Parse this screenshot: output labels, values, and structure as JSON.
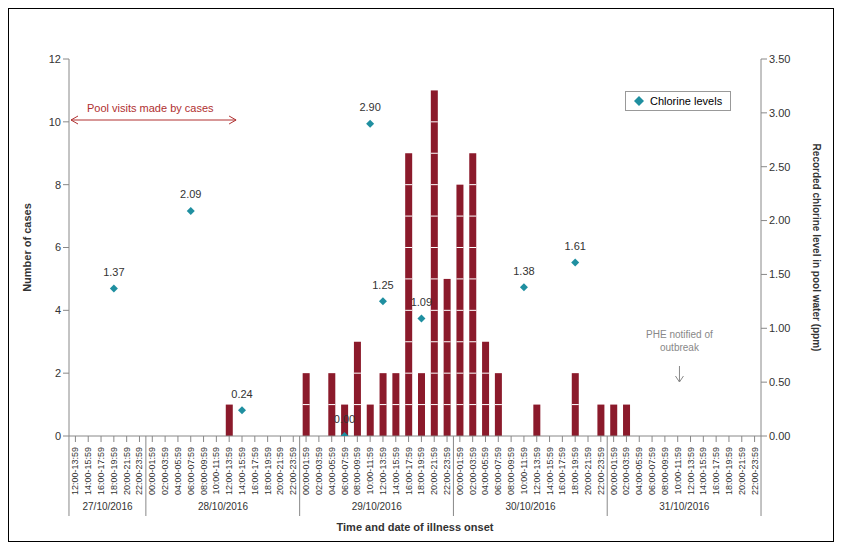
{
  "chart_data": {
    "type": "bar",
    "x_label": "Time and date of illness onset",
    "y_label": "Number of cases",
    "y2_label": "Recorded chlorine level in pool water (ppm)",
    "categories": [
      "12:00-13:59",
      "14:00-15:59",
      "16:00-17:59",
      "18:00-19:59",
      "20:00-21:59",
      "22:00-23:59",
      "00:00-01:59",
      "02:00-03:59",
      "04:00-05:59",
      "06:00-07:59",
      "08:00-09:59",
      "10:00-11:59",
      "12:00-13:59",
      "14:00-15:59",
      "16:00-17:59",
      "18:00-19:59",
      "20:00-21:59",
      "22:00-23:59",
      "00:00-01:59",
      "02:00-03:59",
      "04:00-05:59",
      "06:00-07:59",
      "08:00-09:59",
      "10:00-11:59",
      "12:00-13:59",
      "14:00-15:59",
      "16:00-17:59",
      "18:00-19:59",
      "20:00-21:59",
      "22:00-23:59",
      "00:00-01:59",
      "02:00-03:59",
      "04:00-05:59",
      "06:00-07:59",
      "08:00-09:59",
      "10:00-11:59",
      "12:00-13:59",
      "14:00-15:59",
      "16:00-17:59",
      "18:00-19:59",
      "20:00-21:59",
      "22:00-23:59",
      "00:00-01:59",
      "02:00-03:59",
      "04:00-05:59",
      "06:00-07:59",
      "08:00-09:59",
      "10:00-11:59",
      "12:00-13:59",
      "14:00-15:59",
      "16:00-17:59",
      "18:00-19:59",
      "20:00-21:59",
      "22:00-23:59"
    ],
    "date_groups": [
      {
        "label": "27/10/2016",
        "size": 6
      },
      {
        "label": "28/10/2016",
        "size": 12
      },
      {
        "label": "29/10/2016",
        "size": 12
      },
      {
        "label": "30/10/2016",
        "size": 12
      },
      {
        "label": "31/10/2016",
        "size": 12
      }
    ],
    "series": [
      {
        "type": "bar",
        "color": "#8b1a2b",
        "values": [
          0,
          0,
          0,
          0,
          0,
          0,
          0,
          0,
          0,
          0,
          0,
          0,
          1,
          0,
          0,
          0,
          0,
          0,
          2,
          0,
          2,
          1,
          3,
          1,
          2,
          2,
          9,
          2,
          11,
          5,
          8,
          9,
          3,
          2,
          0,
          0,
          1,
          0,
          0,
          2,
          0,
          1,
          1,
          1,
          0,
          0,
          0,
          0,
          0,
          0,
          0,
          0,
          0,
          0
        ]
      },
      {
        "name": "Chlorine levels",
        "type": "scatter",
        "axis": "y2",
        "color": "#1f8fa0",
        "marker": "diamond",
        "data_labels": true,
        "values": [
          null,
          null,
          null,
          1.37,
          null,
          null,
          null,
          null,
          null,
          2.09,
          null,
          null,
          null,
          0.24,
          null,
          null,
          null,
          null,
          null,
          null,
          null,
          0.0,
          null,
          2.9,
          1.25,
          null,
          null,
          1.09,
          null,
          null,
          null,
          null,
          null,
          null,
          null,
          1.38,
          null,
          null,
          null,
          1.61,
          null,
          null,
          null,
          null,
          null,
          null,
          null,
          null,
          null,
          null,
          null,
          null,
          null,
          null
        ],
        "value_labels": [
          null,
          null,
          null,
          "1.37",
          null,
          null,
          null,
          null,
          null,
          "2.09",
          null,
          null,
          null,
          "0.24",
          null,
          null,
          null,
          null,
          null,
          null,
          null,
          "0.00",
          null,
          "2.90",
          "1.25",
          null,
          null,
          "1.09",
          null,
          null,
          null,
          null,
          null,
          null,
          null,
          "1.38",
          null,
          null,
          null,
          "1.61",
          null,
          null,
          null,
          null,
          null,
          null,
          null,
          null,
          null,
          null,
          null,
          null,
          null,
          null
        ]
      }
    ],
    "ylim": [
      0,
      12
    ],
    "yticks": [
      0,
      2,
      4,
      6,
      8,
      10,
      12
    ],
    "y2lim": [
      0,
      3.5
    ],
    "y2ticks": [
      {
        "value": 0,
        "label": "0.00"
      },
      {
        "value": 0.5,
        "label": "0.50"
      },
      {
        "value": 1,
        "label": "1.00"
      },
      {
        "value": 1.5,
        "label": "1.50"
      },
      {
        "value": 2,
        "label": "2.00"
      },
      {
        "value": 2.5,
        "label": "2.50"
      },
      {
        "value": 3,
        "label": "3.00"
      },
      {
        "value": 3.5,
        "label": "3.50"
      }
    ],
    "legend": "upper right",
    "grid": false,
    "annotations": [
      {
        "text": "Pool visits made by cases"
      },
      {
        "text": "PHE notified of outbreak"
      }
    ]
  }
}
